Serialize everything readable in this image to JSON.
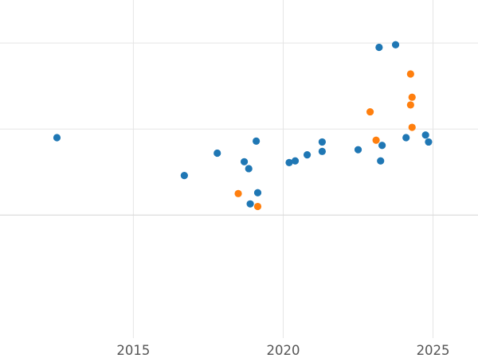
{
  "chart_data": {
    "type": "scatter",
    "title": "",
    "xlabel": "",
    "ylabel": "",
    "grid": true,
    "legend": "none",
    "x_ticks": [
      {
        "value": 2015,
        "label": "2015"
      },
      {
        "value": 2020,
        "label": "2020"
      },
      {
        "value": 2025,
        "label": "2025"
      }
    ],
    "xlim": [
      2010.55,
      2026.5
    ],
    "ylim": [
      -2.43,
      1.5
    ],
    "y_gridlines": [
      -1.0,
      0.0,
      1.0
    ],
    "series": [
      {
        "color": "#1f77b4",
        "points": [
          {
            "x": 2012.45,
            "y": -0.1
          },
          {
            "x": 2016.7,
            "y": -0.54
          },
          {
            "x": 2017.8,
            "y": -0.28
          },
          {
            "x": 2018.7,
            "y": -0.38
          },
          {
            "x": 2018.85,
            "y": -0.46
          },
          {
            "x": 2018.9,
            "y": -0.87
          },
          {
            "x": 2019.1,
            "y": -0.14
          },
          {
            "x": 2019.15,
            "y": -0.74
          },
          {
            "x": 2020.2,
            "y": -0.39
          },
          {
            "x": 2020.4,
            "y": -0.37
          },
          {
            "x": 2020.8,
            "y": -0.3
          },
          {
            "x": 2021.3,
            "y": -0.15
          },
          {
            "x": 2021.3,
            "y": -0.26
          },
          {
            "x": 2022.5,
            "y": -0.24
          },
          {
            "x": 2023.2,
            "y": 0.95
          },
          {
            "x": 2023.25,
            "y": -0.37
          },
          {
            "x": 2023.3,
            "y": -0.19
          },
          {
            "x": 2023.75,
            "y": 0.98
          },
          {
            "x": 2024.1,
            "y": -0.1
          },
          {
            "x": 2024.75,
            "y": -0.07
          },
          {
            "x": 2024.85,
            "y": -0.15
          }
        ]
      },
      {
        "color": "#ff7f0e",
        "points": [
          {
            "x": 2018.5,
            "y": -0.75
          },
          {
            "x": 2019.15,
            "y": -0.9
          },
          {
            "x": 2022.9,
            "y": 0.2
          },
          {
            "x": 2023.1,
            "y": -0.13
          },
          {
            "x": 2024.25,
            "y": 0.64
          },
          {
            "x": 2024.25,
            "y": 0.28
          },
          {
            "x": 2024.3,
            "y": 0.37
          },
          {
            "x": 2024.3,
            "y": 0.02
          }
        ]
      }
    ]
  }
}
